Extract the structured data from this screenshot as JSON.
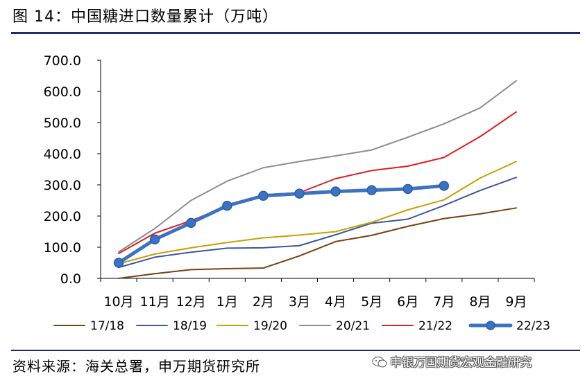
{
  "title": "图 14：中国糖进口数量累计（万吨）",
  "source": "资料来源：海关总署，申万期货研究所",
  "watermark": "申银万国期货宏观金融研究",
  "chart_data": {
    "type": "line",
    "title": "",
    "xlabel": "",
    "ylabel": "",
    "ylim": [
      0,
      700
    ],
    "yticks": [
      "0.0",
      "100.0",
      "200.0",
      "300.0",
      "400.0",
      "500.0",
      "600.0",
      "700.0"
    ],
    "categories": [
      "10月",
      "11月",
      "12月",
      "1月",
      "2月",
      "3月",
      "4月",
      "5月",
      "6月",
      "7月",
      "8月",
      "9月"
    ],
    "legend_position": "bottom",
    "series": [
      {
        "name": "17/18",
        "color": "#7b3f10",
        "values": [
          0,
          15,
          28,
          31,
          33,
          72,
          118,
          138,
          167,
          192,
          207,
          226
        ],
        "markers": false,
        "width": 2
      },
      {
        "name": "18/19",
        "color": "#3a56a0",
        "values": [
          35,
          68,
          84,
          97,
          98,
          105,
          140,
          177,
          190,
          234,
          282,
          324
        ],
        "markers": false,
        "width": 2
      },
      {
        "name": "19/20",
        "color": "#c9a000",
        "values": [
          47,
          78,
          98,
          115,
          130,
          139,
          150,
          180,
          220,
          252,
          322,
          375
        ],
        "markers": false,
        "width": 2
      },
      {
        "name": "20/21",
        "color": "#8c8c8c",
        "values": [
          85,
          160,
          250,
          312,
          355,
          375,
          393,
          412,
          453,
          496,
          547,
          634
        ],
        "markers": false,
        "width": 2
      },
      {
        "name": "21/22",
        "color": "#e31b1b",
        "values": [
          80,
          145,
          185,
          232,
          268,
          275,
          320,
          346,
          360,
          388,
          455,
          534
        ],
        "markers": false,
        "width": 2
      },
      {
        "name": "22/23",
        "color": "#3b73c2",
        "values": [
          50,
          125,
          178,
          233,
          265,
          272,
          279,
          283,
          287,
          297,
          null,
          null
        ],
        "markers": true,
        "width": 5
      }
    ]
  }
}
